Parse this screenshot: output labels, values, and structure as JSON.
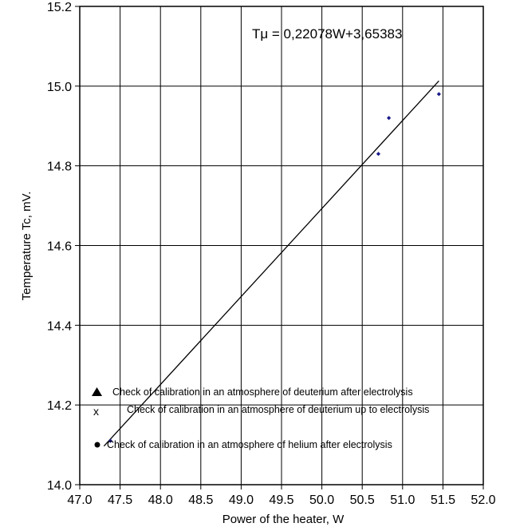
{
  "chart_data": {
    "type": "scatter",
    "xlabel": "Power of the heater, W",
    "ylabel": "Temperature Tc, mV.",
    "xlim": [
      47.0,
      52.0
    ],
    "ylim": [
      14.0,
      15.2
    ],
    "xticks": [
      "47.0",
      "47.5",
      "48.0",
      "48.5",
      "49.0",
      "49.5",
      "50.0",
      "50.5",
      "51.0",
      "51.5",
      "52.0"
    ],
    "yticks": [
      "14.0",
      "14.2",
      "14.4",
      "14.6",
      "14.8",
      "15.0",
      "15.2"
    ],
    "grid": true,
    "series": [
      {
        "marker": "diamond",
        "color": "#1a1a8c",
        "points": [
          {
            "x": 47.38,
            "y": 14.11
          },
          {
            "x": 50.7,
            "y": 14.83
          },
          {
            "x": 50.83,
            "y": 14.92
          },
          {
            "x": 51.45,
            "y": 14.98
          }
        ]
      }
    ],
    "trendline": {
      "equation": "Tμ = 0,22078W+3,65383",
      "slope": 0.22078,
      "intercept": 3.65383,
      "x_range": [
        47.3,
        51.45
      ]
    },
    "legend": {
      "position": "lower-left",
      "entries": [
        {
          "marker": "triangle",
          "label": "Check of calibration in an atmosphere of deuterium after electrolysis"
        },
        {
          "marker": "x",
          "label": "Check of calibration in an atmosphere of deuterium up to electrolysis"
        },
        {
          "marker": "circle",
          "label": "Check of calibration in an atmosphere of helium after electrolysis"
        }
      ]
    }
  }
}
